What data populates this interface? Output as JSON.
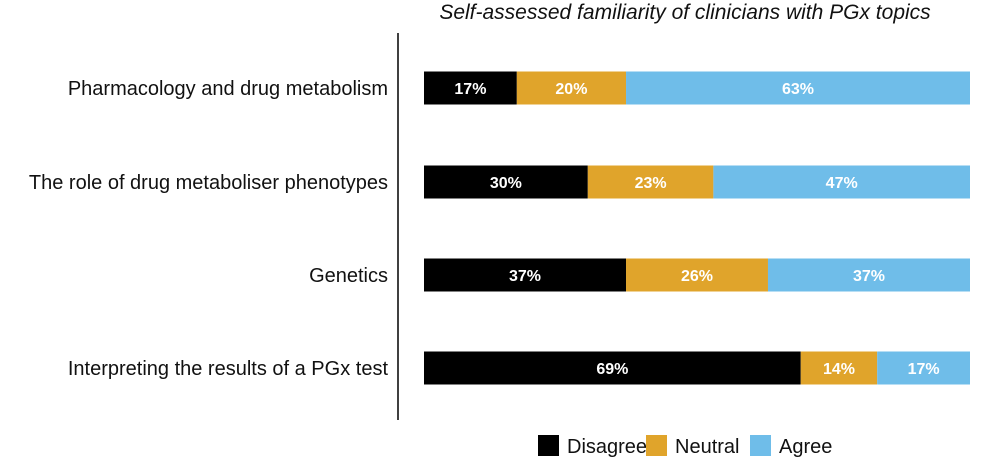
{
  "chart_data": {
    "type": "bar",
    "orientation": "horizontal",
    "stacked": true,
    "title": "Self-assessed familiarity of clinicians with PGx topics",
    "xlabel": "",
    "ylabel": "",
    "xlim": [
      0,
      100
    ],
    "grid": false,
    "legend_position": "bottom",
    "categories": [
      "Pharmacology and drug metabolism",
      "The role of drug metaboliser phenotypes",
      "Genetics",
      "Interpreting the results of a PGx test"
    ],
    "series": [
      {
        "name": "Disagree",
        "color": "#000000",
        "values": [
          17,
          30,
          37,
          69
        ],
        "labels": [
          "17%",
          "30%",
          "37%",
          "69%"
        ]
      },
      {
        "name": "Neutral",
        "color": "#E0A42B",
        "values": [
          20,
          23,
          26,
          14
        ],
        "labels": [
          "20%",
          "23%",
          "26%",
          "14%"
        ]
      },
      {
        "name": "Agree",
        "color": "#6FBDE9",
        "values": [
          63,
          47,
          37,
          17
        ],
        "labels": [
          "63%",
          "47%",
          "37%",
          "17%"
        ]
      }
    ]
  }
}
